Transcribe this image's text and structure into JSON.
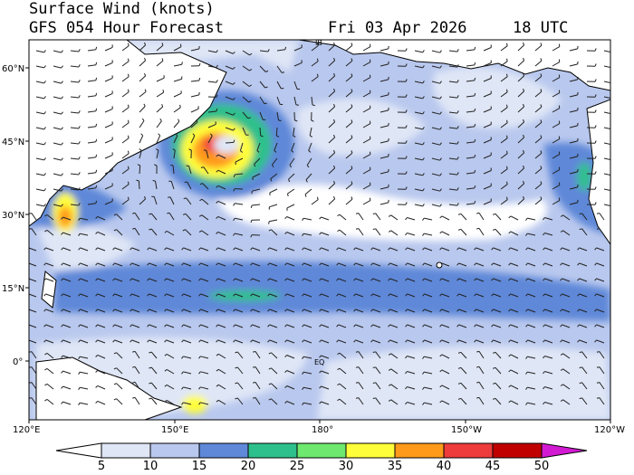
{
  "header": {
    "title": "Surface Wind (knots)",
    "subtitle": "GFS 054 Hour Forecast",
    "valid_date": "Fri 03 Apr 2026",
    "valid_time": "18 UTC"
  },
  "axes": {
    "lat_labels": [
      "60°N",
      "45°N",
      "30°N",
      "15°N",
      "0°"
    ],
    "lon_labels": [
      "120°E",
      "150°E",
      "180°",
      "150°W",
      "120°W"
    ],
    "equator_label": "EQ",
    "dateline_label": "IB"
  },
  "colorbar": {
    "labels": [
      "5",
      "10",
      "15",
      "20",
      "25",
      "30",
      "35",
      "40",
      "45",
      "50"
    ],
    "colors": [
      "#ffffff",
      "#dfe6f6",
      "#b9c8ee",
      "#5f88d8",
      "#2ec08c",
      "#6ee86e",
      "#fffe3a",
      "#ff9a1a",
      "#ee3b3b",
      "#c00000",
      "#d21ad2"
    ]
  },
  "colors": {
    "land": "#ffffff",
    "coast": "#000000",
    "calm": "#ffffff",
    "light": "#dfe6f6",
    "moderate": "#b9c8ee",
    "fresh": "#5f88d8",
    "strong": "#2ec08c",
    "gale": "#6ee86e",
    "storm_y": "#fffe3a",
    "storm_o": "#ff9a1a",
    "storm_r": "#ee3b3b"
  }
}
